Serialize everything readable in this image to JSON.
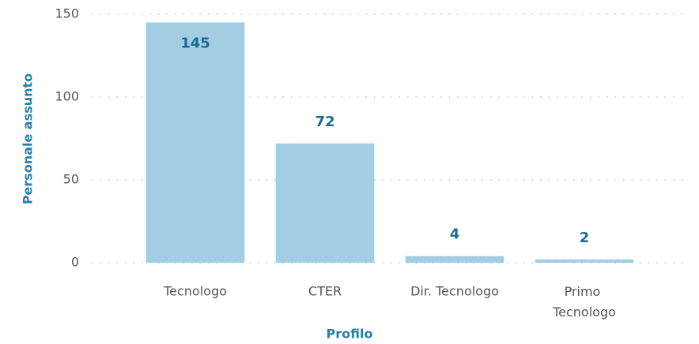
{
  "chart_data": {
    "type": "bar",
    "categories": [
      "Tecnologo",
      "CTER",
      "Dir. Tecnologo",
      "Primo Tecnologo"
    ],
    "values": [
      145,
      72,
      4,
      2
    ],
    "color": "#a3cde3",
    "ylim": [
      0,
      150
    ],
    "yticks": [
      0,
      50,
      100,
      150
    ],
    "grid": true,
    "xlabel": "Profilo",
    "ylabel": "Personale assunto"
  }
}
